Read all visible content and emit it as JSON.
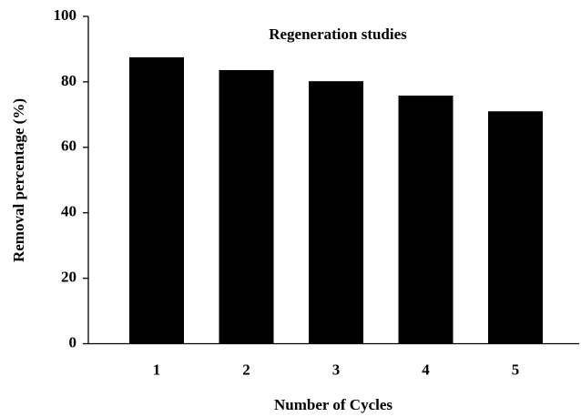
{
  "chart_data": {
    "type": "bar",
    "title": "Regeneration studies",
    "x_label": "Number of Cycles",
    "y_label": "Removal percentage (%)",
    "categories": [
      "1",
      "2",
      "3",
      "4",
      "5"
    ],
    "values": [
      87.5,
      83.6,
      80.2,
      75.8,
      71.0
    ],
    "color": "#000000",
    "ylim": [
      0,
      100
    ],
    "yticks": [
      0,
      20,
      40,
      60,
      80,
      100
    ]
  }
}
